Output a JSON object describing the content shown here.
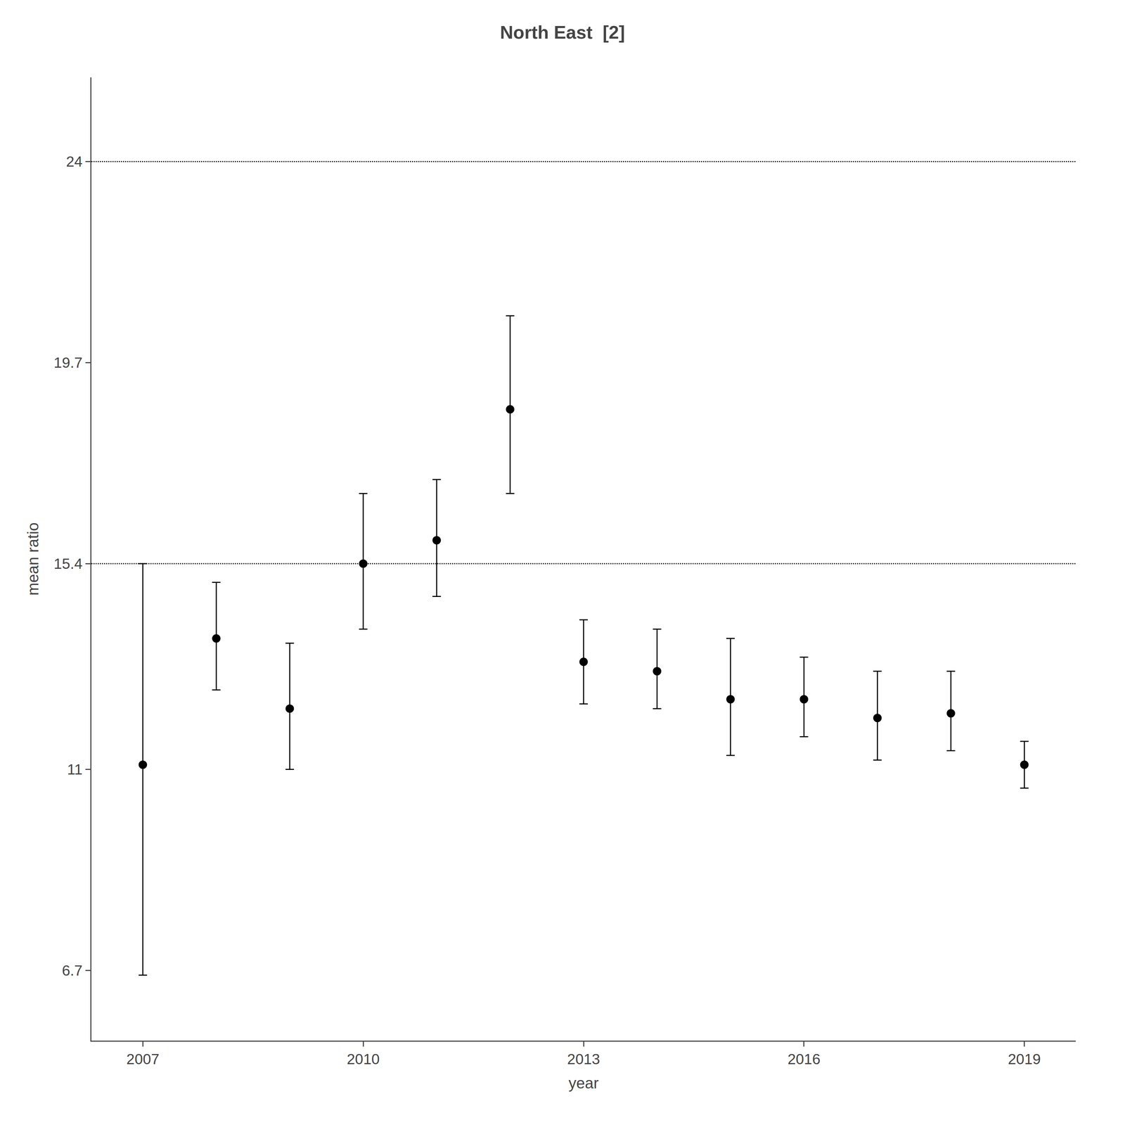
{
  "chart_data": {
    "type": "scatter",
    "title": "North East  [2]",
    "x_label": "year",
    "y_label": "mean ratio",
    "x": [
      2007,
      2008,
      2009,
      2010,
      2011,
      2012,
      2013,
      2014,
      2015,
      2016,
      2017,
      2018,
      2019
    ],
    "values": [
      11.1,
      13.8,
      12.3,
      15.4,
      15.9,
      18.7,
      13.3,
      13.1,
      12.5,
      12.5,
      12.1,
      12.2,
      11.1
    ],
    "yerr_lo": [
      4.5,
      1.1,
      1.3,
      1.4,
      1.2,
      1.8,
      0.9,
      0.8,
      1.2,
      0.8,
      0.9,
      0.8,
      0.5
    ],
    "yerr_hi": [
      4.3,
      1.2,
      1.4,
      1.5,
      1.3,
      2.0,
      0.9,
      0.9,
      1.3,
      0.9,
      1.0,
      0.9,
      0.5
    ],
    "hlines": [
      24,
      15.4
    ],
    "color": "#000000",
    "marker": "circle",
    "xlim": [
      2006.3,
      2019.7
    ],
    "xticks": [
      2007,
      2010,
      2013,
      2016,
      2019
    ],
    "ylim": [
      5.2,
      25.8
    ],
    "yticks": [
      6.7,
      11,
      15.4,
      19.7,
      24
    ],
    "grid": false,
    "legend": false
  }
}
